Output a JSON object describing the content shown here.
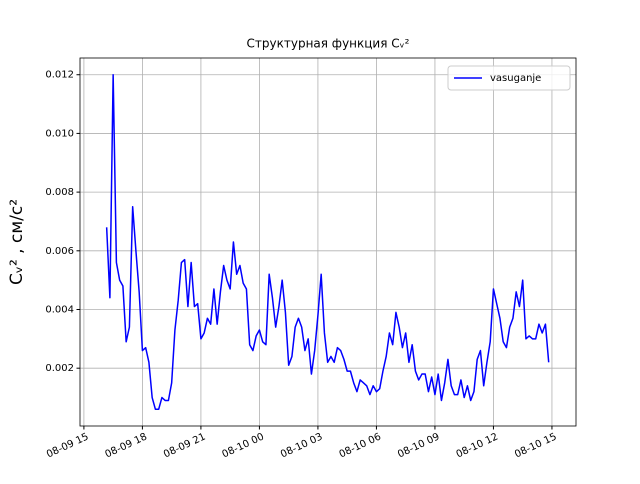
{
  "chart_data": {
    "type": "line",
    "title": "Структурная функция Cᵥ²",
    "ylabel": "Cᵥ² , см/с²",
    "x": [
      "08-09 16:10",
      "08-09 16:20",
      "08-09 16:30",
      "08-09 16:40",
      "08-09 16:50",
      "08-09 17:00",
      "08-09 17:10",
      "08-09 17:20",
      "08-09 17:30",
      "08-09 17:40",
      "08-09 17:50",
      "08-09 18:00",
      "08-09 18:10",
      "08-09 18:20",
      "08-09 18:30",
      "08-09 18:40",
      "08-09 18:50",
      "08-09 19:00",
      "08-09 19:10",
      "08-09 19:20",
      "08-09 19:30",
      "08-09 19:40",
      "08-09 19:50",
      "08-09 20:00",
      "08-09 20:10",
      "08-09 20:20",
      "08-09 20:30",
      "08-09 20:40",
      "08-09 20:50",
      "08-09 21:00",
      "08-09 21:10",
      "08-09 21:20",
      "08-09 21:30",
      "08-09 21:40",
      "08-09 21:50",
      "08-09 22:00",
      "08-09 22:10",
      "08-09 22:20",
      "08-09 22:30",
      "08-09 22:40",
      "08-09 22:50",
      "08-09 23:00",
      "08-09 23:10",
      "08-09 23:20",
      "08-09 23:30",
      "08-09 23:40",
      "08-09 23:50",
      "08-10 00:00",
      "08-10 00:10",
      "08-10 00:20",
      "08-10 00:30",
      "08-10 00:40",
      "08-10 00:50",
      "08-10 01:00",
      "08-10 01:10",
      "08-10 01:20",
      "08-10 01:30",
      "08-10 01:40",
      "08-10 01:50",
      "08-10 02:00",
      "08-10 02:10",
      "08-10 02:20",
      "08-10 02:30",
      "08-10 02:40",
      "08-10 02:50",
      "08-10 03:00",
      "08-10 03:10",
      "08-10 03:20",
      "08-10 03:30",
      "08-10 03:40",
      "08-10 03:50",
      "08-10 04:00",
      "08-10 04:10",
      "08-10 04:20",
      "08-10 04:30",
      "08-10 04:40",
      "08-10 04:50",
      "08-10 05:00",
      "08-10 05:10",
      "08-10 05:20",
      "08-10 05:30",
      "08-10 05:40",
      "08-10 05:50",
      "08-10 06:00",
      "08-10 06:10",
      "08-10 06:20",
      "08-10 06:30",
      "08-10 06:40",
      "08-10 06:50",
      "08-10 07:00",
      "08-10 07:10",
      "08-10 07:20",
      "08-10 07:30",
      "08-10 07:40",
      "08-10 07:50",
      "08-10 08:00",
      "08-10 08:10",
      "08-10 08:20",
      "08-10 08:30",
      "08-10 08:40",
      "08-10 08:50",
      "08-10 09:00",
      "08-10 09:10",
      "08-10 09:20",
      "08-10 09:30",
      "08-10 09:40",
      "08-10 09:50",
      "08-10 10:00",
      "08-10 10:10",
      "08-10 10:20",
      "08-10 10:30",
      "08-10 10:40",
      "08-10 10:50",
      "08-10 11:00",
      "08-10 11:10",
      "08-10 11:20",
      "08-10 11:30",
      "08-10 11:40",
      "08-10 11:50",
      "08-10 12:00",
      "08-10 12:10",
      "08-10 12:20",
      "08-10 12:30",
      "08-10 12:40",
      "08-10 12:50",
      "08-10 13:00",
      "08-10 13:10",
      "08-10 13:20",
      "08-10 13:30",
      "08-10 13:40",
      "08-10 13:50",
      "08-10 14:00",
      "08-10 14:10",
      "08-10 14:20",
      "08-10 14:30",
      "08-10 14:40",
      "08-10 14:50"
    ],
    "series": [
      {
        "name": "vasuganje",
        "color": "#0000ff",
        "values": [
          0.0068,
          0.0044,
          0.012,
          0.0056,
          0.005,
          0.0048,
          0.0029,
          0.0034,
          0.0075,
          0.006,
          0.0046,
          0.0026,
          0.0027,
          0.0022,
          0.001,
          0.0006,
          0.0006,
          0.001,
          0.0009,
          0.0009,
          0.0015,
          0.0033,
          0.0043,
          0.0056,
          0.0057,
          0.0041,
          0.0056,
          0.0041,
          0.0042,
          0.003,
          0.0032,
          0.0037,
          0.0035,
          0.0047,
          0.0035,
          0.0046,
          0.0055,
          0.005,
          0.0047,
          0.0063,
          0.0052,
          0.0055,
          0.0049,
          0.0047,
          0.0028,
          0.0026,
          0.0031,
          0.0033,
          0.0029,
          0.0028,
          0.0052,
          0.0044,
          0.0034,
          0.0041,
          0.005,
          0.0039,
          0.0021,
          0.0024,
          0.0034,
          0.0037,
          0.0034,
          0.0026,
          0.003,
          0.0018,
          0.0026,
          0.0038,
          0.0052,
          0.0032,
          0.0022,
          0.0024,
          0.0022,
          0.0027,
          0.0026,
          0.0023,
          0.0019,
          0.0019,
          0.0015,
          0.0012,
          0.0016,
          0.0015,
          0.0014,
          0.0011,
          0.0014,
          0.0012,
          0.0013,
          0.0019,
          0.0024,
          0.0032,
          0.0028,
          0.0039,
          0.0034,
          0.0027,
          0.0032,
          0.0022,
          0.0028,
          0.0019,
          0.0016,
          0.0018,
          0.0018,
          0.0012,
          0.0017,
          0.0011,
          0.0018,
          0.0009,
          0.0015,
          0.0023,
          0.0014,
          0.0011,
          0.0011,
          0.0016,
          0.001,
          0.0014,
          0.0009,
          0.0012,
          0.0023,
          0.0026,
          0.0014,
          0.0022,
          0.0029,
          0.0047,
          0.0042,
          0.0037,
          0.0029,
          0.0027,
          0.0034,
          0.0037,
          0.0046,
          0.0041,
          0.005,
          0.003,
          0.0031,
          0.003,
          0.003,
          0.0035,
          0.0032,
          0.0035,
          0.0022
        ]
      }
    ],
    "xlim": [
      "08-09 14:48",
      "08-10 16:14"
    ],
    "xticks": [
      "08-09 15",
      "08-09 18",
      "08-09 21",
      "08-10 00",
      "08-10 03",
      "08-10 06",
      "08-10 09",
      "08-10 12",
      "08-10 15"
    ],
    "ylim": [
      3e-05,
      0.01257
    ],
    "yticks": [
      0.002,
      0.004,
      0.006,
      0.008,
      {
        "value": 0.01,
        "label": "0.010"
      },
      0.012
    ],
    "grid": true,
    "legend": "upper right"
  }
}
